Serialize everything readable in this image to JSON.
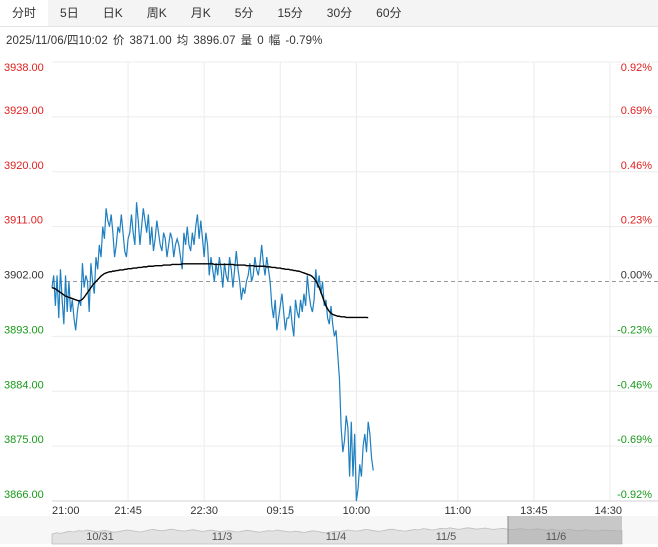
{
  "tabs": [
    {
      "label": "分时",
      "active": true
    },
    {
      "label": "5日",
      "active": false
    },
    {
      "label": "日K",
      "active": false
    },
    {
      "label": "周K",
      "active": false
    },
    {
      "label": "月K",
      "active": false
    },
    {
      "label": "5分",
      "active": false
    },
    {
      "label": "15分",
      "active": false
    },
    {
      "label": "30分",
      "active": false
    },
    {
      "label": "60分",
      "active": false
    }
  ],
  "info": {
    "datetime": "2025/11/06/四10:02",
    "price_label": "价",
    "price": "3871.00",
    "avg_label": "均",
    "avg": "3896.07",
    "volume_label": "量",
    "volume": "0",
    "change_label": "幅",
    "change": "-0.79%"
  },
  "colors": {
    "up": "#e02020",
    "down": "#1a9a1a",
    "price_line": "#1f7fbf",
    "avg_line": "#000000",
    "grid": "#ececec",
    "ref_line": "#999999"
  },
  "chart_data": {
    "type": "line",
    "ylim": [
      3866,
      3938
    ],
    "ref_price": 3902,
    "left_ticks": [
      "3938.00",
      "3929.00",
      "3920.00",
      "3911.00",
      "3902.00",
      "3893.00",
      "3884.00",
      "3875.00",
      "3866.00"
    ],
    "right_ticks": [
      "0.92%",
      "0.69%",
      "0.46%",
      "0.23%",
      "0.00%",
      "-0.23%",
      "-0.46%",
      "-0.69%",
      "-0.92%"
    ],
    "x_ticks": [
      "21:00",
      "21:45",
      "22:30",
      "09:15",
      "10:00",
      "11:00",
      "13:45",
      "14:30"
    ],
    "x_tick_index": [
      0,
      45,
      90,
      135,
      180,
      240,
      285,
      330
    ],
    "x_max_index": 330,
    "series": [
      {
        "values": [
          3901,
          3903,
          3898,
          3903,
          3896,
          3904,
          3899,
          3895,
          3903,
          3897,
          3902,
          3897,
          3899,
          3896,
          3894,
          3897,
          3899,
          3898,
          3905,
          3901,
          3903,
          3902,
          3897,
          3905,
          3902,
          3900,
          3906,
          3904,
          3908,
          3906,
          3911,
          3909,
          3914,
          3912,
          3911,
          3913,
          3910,
          3906,
          3908,
          3911,
          3910,
          3913,
          3910,
          3907,
          3906,
          3909,
          3910,
          3913,
          3910,
          3908,
          3915,
          3912,
          3908,
          3911,
          3914,
          3912,
          3910,
          3913,
          3908,
          3911,
          3907,
          3909,
          3912,
          3910,
          3908,
          3907,
          3910,
          3909,
          3906,
          3908,
          3910,
          3909,
          3906,
          3908,
          3909,
          3908,
          3906,
          3904,
          3910,
          3908,
          3911,
          3908,
          3907,
          3910,
          3908,
          3911,
          3913,
          3909,
          3912,
          3909,
          3906,
          3910,
          3908,
          3903,
          3906,
          3904,
          3902,
          3905,
          3903,
          3906,
          3904,
          3901,
          3905,
          3903,
          3902,
          3906,
          3904,
          3901,
          3904,
          3907,
          3904,
          3902,
          3899,
          3901,
          3900,
          3902,
          3903,
          3905,
          3902,
          3903,
          3906,
          3904,
          3903,
          3905,
          3908,
          3905,
          3903,
          3906,
          3904,
          3902,
          3898,
          3896,
          3899,
          3894,
          3896,
          3898,
          3900,
          3897,
          3894,
          3896,
          3896,
          3898,
          3895,
          3893,
          3899,
          3897,
          3896,
          3899,
          3897,
          3900,
          3898,
          3903,
          3900,
          3898,
          3897,
          3899,
          3904,
          3901,
          3903,
          3900,
          3902,
          3898,
          3899,
          3896,
          3895,
          3898,
          3895,
          3893,
          3894,
          3890,
          3886,
          3878,
          3874,
          3876,
          3880,
          3878,
          3870,
          3879,
          3870,
          3877,
          3866,
          3868,
          3872,
          3870,
          3875,
          3877,
          3874,
          3879,
          3877,
          3873,
          3871
        ],
        "avg": [
          3901,
          3900.9,
          3900.8,
          3900.6,
          3900.4,
          3900.2,
          3900,
          3899.8,
          3899.6,
          3899.5,
          3899.4,
          3899.3,
          3899.2,
          3899.1,
          3899,
          3898.9,
          3898.8,
          3898.9,
          3899.1,
          3899.4,
          3899.8,
          3900.2,
          3900.6,
          3901,
          3901.4,
          3901.7,
          3902,
          3902.3,
          3902.6,
          3902.9,
          3903.1,
          3903.3,
          3903.4,
          3903.5,
          3903.6,
          3903.6,
          3903.7,
          3903.7,
          3903.8,
          3903.8,
          3903.9,
          3903.9,
          3903.9,
          3904,
          3904,
          3904.1,
          3904.1,
          3904.1,
          3904.2,
          3904.2,
          3904.2,
          3904.3,
          3904.3,
          3904.3,
          3904.4,
          3904.4,
          3904.4,
          3904.5,
          3904.5,
          3904.5,
          3904.5,
          3904.6,
          3904.6,
          3904.6,
          3904.6,
          3904.6,
          3904.7,
          3904.7,
          3904.7,
          3904.7,
          3904.7,
          3904.8,
          3904.8,
          3904.8,
          3904.8,
          3904.8,
          3904.8,
          3904.9,
          3904.9,
          3904.9,
          3904.9,
          3904.9,
          3904.9,
          3904.9,
          3904.9,
          3904.9,
          3904.9,
          3904.9,
          3904.9,
          3904.9,
          3904.9,
          3904.9,
          3904.9,
          3904.9,
          3904.9,
          3904.9,
          3904.8,
          3904.8,
          3904.8,
          3904.8,
          3904.8,
          3904.8,
          3904.8,
          3904.8,
          3904.8,
          3904.8,
          3904.8,
          3904.8,
          3904.7,
          3904.7,
          3904.7,
          3904.7,
          3904.7,
          3904.7,
          3904.7,
          3904.6,
          3904.6,
          3904.6,
          3904.6,
          3904.6,
          3904.5,
          3904.5,
          3904.5,
          3904.5,
          3904.5,
          3904.5,
          3904.5,
          3904.4,
          3904.4,
          3904.4,
          3904.3,
          3904.3,
          3904.3,
          3904.2,
          3904.2,
          3904.2,
          3904.1,
          3904.1,
          3904,
          3904,
          3904,
          3903.9,
          3903.9,
          3903.8,
          3903.8,
          3903.7,
          3903.7,
          3903.6,
          3903.5,
          3903.4,
          3903.3,
          3903.2,
          3903.1,
          3903,
          3902.8,
          3902.5,
          3902.1,
          3901.6,
          3901,
          3900.3,
          3899.5,
          3898.7,
          3898,
          3897.5,
          3897.1,
          3896.8,
          3896.6,
          3896.5,
          3896.4,
          3896.3,
          3896.3,
          3896.2,
          3896.2,
          3896.2,
          3896.1,
          3896.1,
          3896.1,
          3896.1,
          3896.1,
          3896.1,
          3896.1,
          3896.1,
          3896.1,
          3896.1,
          3896.1,
          3896.1,
          3896.1,
          3896.07
        ]
      }
    ]
  },
  "navigator": {
    "labels": [
      "10/31",
      "11/3",
      "11/4",
      "11/5",
      "11/6"
    ],
    "profile": [
      0.35,
      0.4,
      0.38,
      0.42,
      0.45,
      0.43,
      0.48,
      0.46,
      0.5,
      0.47,
      0.44,
      0.46,
      0.49,
      0.45,
      0.42,
      0.44,
      0.47,
      0.5,
      0.48,
      0.45,
      0.43,
      0.46,
      0.5,
      0.52,
      0.49,
      0.47,
      0.5,
      0.53,
      0.5,
      0.48,
      0.46,
      0.49,
      0.51,
      0.48,
      0.45,
      0.47,
      0.5,
      0.47,
      0.44,
      0.46,
      0.48,
      0.45,
      0.43,
      0.46,
      0.49,
      0.47,
      0.44,
      0.42,
      0.45,
      0.48,
      0.46,
      0.5,
      0.47,
      0.45,
      0.43,
      0.46,
      0.44,
      0.41,
      0.44,
      0.47,
      0.45,
      0.42,
      0.4,
      0.43,
      0.46,
      0.44,
      0.47,
      0.5,
      0.48,
      0.46,
      0.49,
      0.52,
      0.5,
      0.47,
      0.45,
      0.48,
      0.51,
      0.53,
      0.5,
      0.48,
      0.46,
      0.49,
      0.52,
      0.5,
      0.55,
      0.53,
      0.5,
      0.52,
      0.56,
      0.54,
      0.58,
      0.55,
      0.52,
      0.55,
      0.58,
      0.56,
      0.53,
      0.55,
      0.57,
      0.54,
      0.52,
      0.54,
      0.56,
      0.53,
      0.51,
      0.53,
      0.55,
      0.52,
      0.5,
      0.52,
      0.54,
      0.51,
      0.49,
      0.52,
      0.5,
      0.48,
      0.5,
      0.52,
      0.49,
      0.47,
      0.49,
      0.51,
      0.48,
      0.46,
      0.48,
      0.5,
      0.47,
      0.49,
      0.46,
      0.48
    ]
  }
}
